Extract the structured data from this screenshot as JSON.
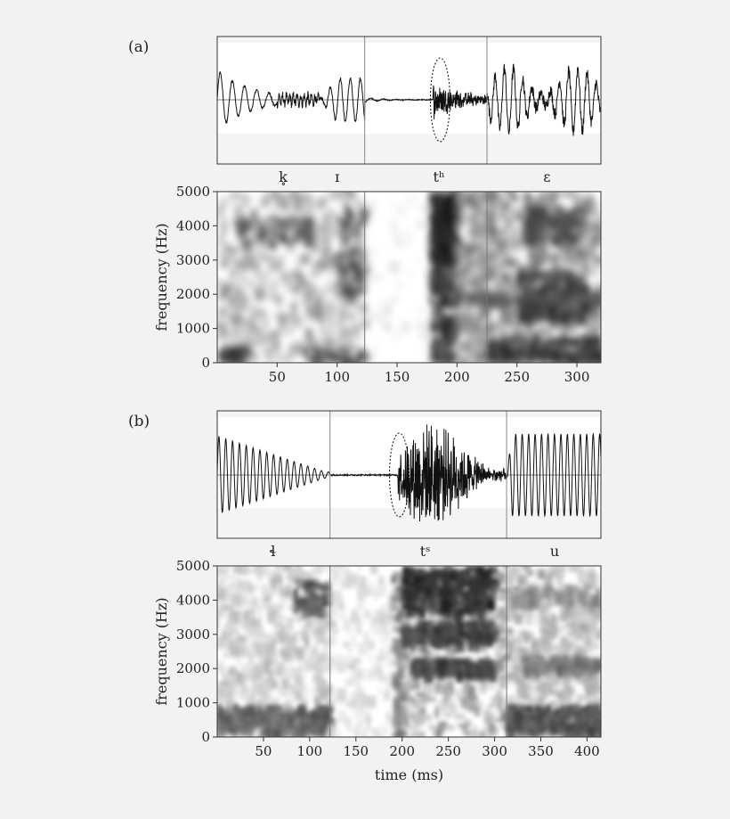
{
  "chart_data": [
    {
      "type": "heatmap",
      "panel_label": "(a)",
      "segments": [
        {
          "label": "k̥",
          "center_ms": 55
        },
        {
          "label": "ɪ",
          "center_ms": 100
        },
        {
          "label": "tʰ",
          "center_ms": 185
        },
        {
          "label": "ɛ",
          "center_ms": 275
        }
      ],
      "boundaries_ms": [
        123,
        225
      ],
      "burst_ms": 180,
      "xlim": [
        0,
        320
      ],
      "xticks": [
        50,
        100,
        150,
        200,
        250,
        300
      ],
      "ylim": [
        0,
        5000
      ],
      "yticks": [
        0,
        1000,
        2000,
        3000,
        4000,
        5000
      ],
      "ylabel": "frequency (Hz)",
      "xlabel": ""
    },
    {
      "type": "heatmap",
      "panel_label": "(b)",
      "segments": [
        {
          "label": "ɬ",
          "center_ms": 60
        },
        {
          "label": "tˢ",
          "center_ms": 225
        },
        {
          "label": "u",
          "center_ms": 365
        }
      ],
      "boundaries_ms": [
        122,
        313
      ],
      "burst_ms": 195,
      "xlim": [
        0,
        415
      ],
      "xticks": [
        50,
        100,
        150,
        200,
        250,
        300,
        350,
        400
      ],
      "ylim": [
        0,
        5000
      ],
      "yticks": [
        0,
        1000,
        2000,
        3000,
        4000,
        5000
      ],
      "ylabel": "frequency (Hz)",
      "xlabel": "time (ms)"
    }
  ]
}
